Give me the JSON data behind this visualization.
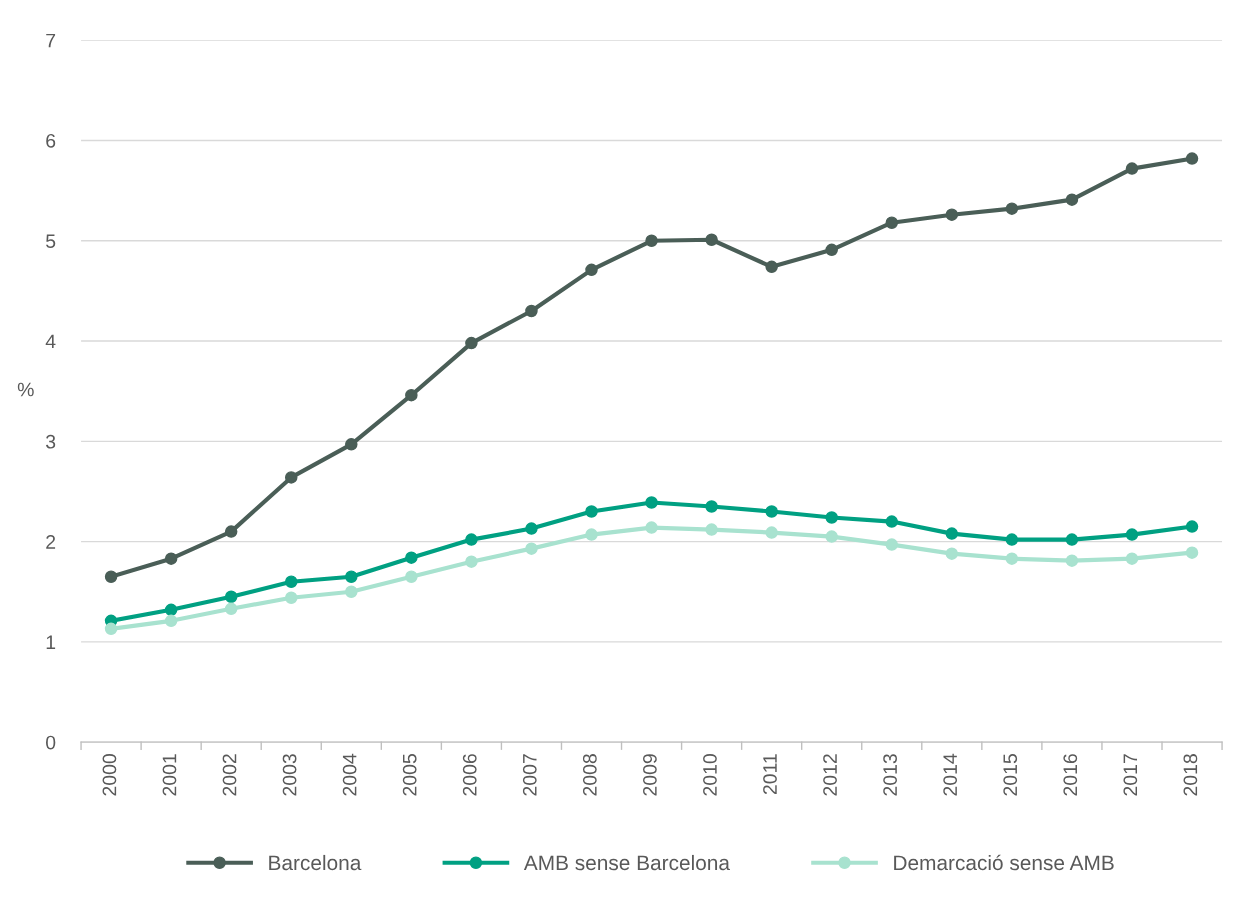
{
  "chart_data": {
    "type": "line",
    "ylabel": "%",
    "categories": [
      "2000",
      "2001",
      "2002",
      "2003",
      "2004",
      "2005",
      "2006",
      "2007",
      "2008",
      "2009",
      "2010",
      "2011",
      "2012",
      "2013",
      "2014",
      "2015",
      "2016",
      "2017",
      "2018"
    ],
    "series": [
      {
        "name": "Barcelona",
        "color": "#4a5e57",
        "values": [
          1.65,
          1.83,
          2.1,
          2.64,
          2.97,
          3.46,
          3.98,
          4.3,
          4.71,
          5.0,
          5.01,
          4.74,
          4.91,
          5.18,
          5.26,
          5.32,
          5.41,
          5.72,
          5.82
        ]
      },
      {
        "name": "AMB sense Barcelona",
        "color": "#00a082",
        "values": [
          1.21,
          1.32,
          1.45,
          1.6,
          1.65,
          1.84,
          2.02,
          2.13,
          2.3,
          2.39,
          2.35,
          2.3,
          2.24,
          2.2,
          2.08,
          2.02,
          2.02,
          2.07,
          2.15
        ]
      },
      {
        "name": "Demarcació sense AMB",
        "color": "#a8e2cf",
        "values": [
          1.13,
          1.21,
          1.33,
          1.44,
          1.5,
          1.65,
          1.8,
          1.93,
          2.07,
          2.14,
          2.12,
          2.09,
          2.05,
          1.97,
          1.88,
          1.83,
          1.81,
          1.83,
          1.89
        ]
      }
    ],
    "ylim": [
      0,
      7
    ],
    "yticks": [
      0,
      1,
      2,
      3,
      4,
      5,
      6,
      7
    ],
    "grid": "y",
    "legend": "bottom",
    "marker": "circle",
    "line_style": "solid"
  }
}
